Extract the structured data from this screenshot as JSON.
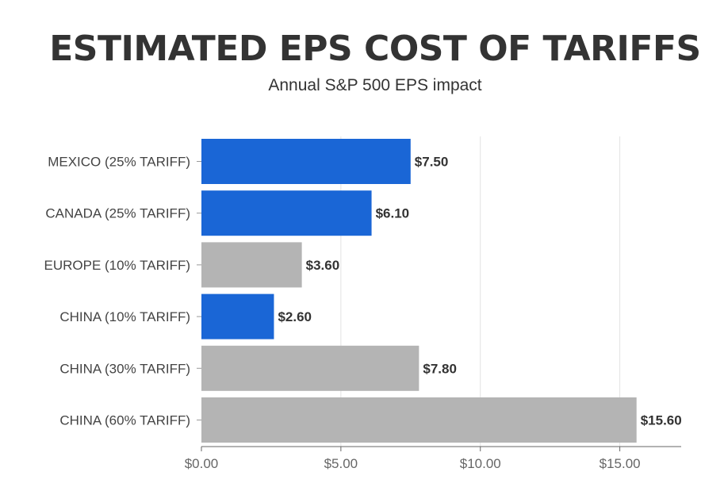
{
  "chart_data": {
    "type": "bar",
    "orientation": "horizontal",
    "title": "ESTIMATED EPS COST OF TARIFFS",
    "subtitle": "Annual S&P 500 EPS impact",
    "categories": [
      "MEXICO (25% TARIFF)",
      "CANADA (25% TARIFF)",
      "EUROPE (10% TARIFF)",
      "CHINA (10% TARIFF)",
      "CHINA (30% TARIFF)",
      "CHINA (60% TARIFF)"
    ],
    "values": [
      7.5,
      6.1,
      3.6,
      2.6,
      7.8,
      15.6
    ],
    "value_labels": [
      "$7.50",
      "$6.10",
      "$3.60",
      "$2.60",
      "$7.80",
      "$15.60"
    ],
    "bar_colors": [
      "#1a66d6",
      "#1a66d6",
      "#b4b4b4",
      "#1a66d6",
      "#b4b4b4",
      "#b4b4b4"
    ],
    "xticks": [
      0,
      5,
      10,
      15
    ],
    "xtick_labels": [
      "$0.00",
      "$5.00",
      "$10.00",
      "$15.00"
    ],
    "xlim": [
      0,
      17.2
    ],
    "xlabel": "",
    "ylabel": "",
    "grid": true,
    "legend": "none"
  },
  "colors": {
    "highlight": "#1a66d6",
    "muted": "#b4b4b4",
    "text": "#333333",
    "grid": "#e2e2e2",
    "axis": "#666666"
  }
}
